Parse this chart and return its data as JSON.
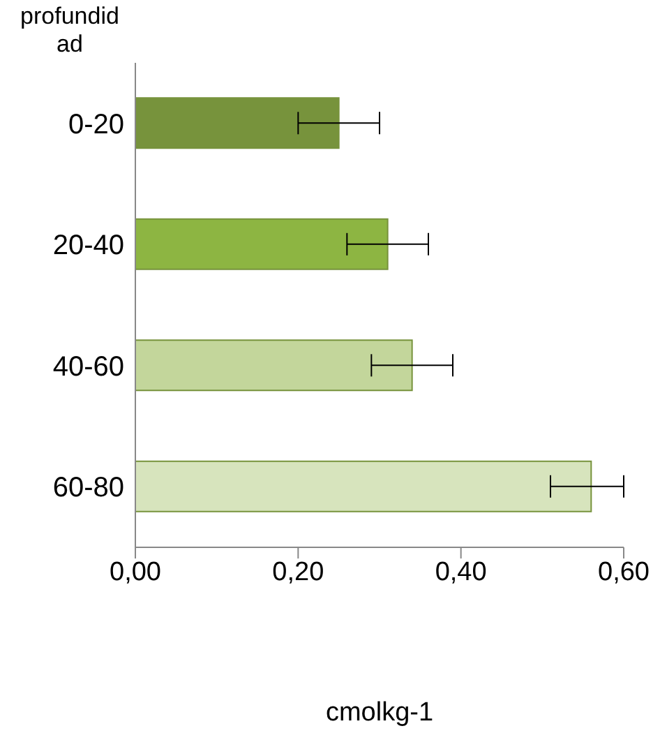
{
  "chart_data": {
    "type": "bar",
    "orientation": "horizontal",
    "ylabel": "profundidad",
    "xlabel": "cmolkg-1",
    "categories": [
      "0-20",
      "20-40",
      "40-60",
      "60-80"
    ],
    "values": [
      0.25,
      0.31,
      0.34,
      0.56
    ],
    "errors": [
      0.05,
      0.05,
      0.05,
      [
        0.51,
        0.6
      ]
    ],
    "colors": [
      "#77933c",
      "#8db542",
      "#c3d69b",
      "#d7e4bd"
    ],
    "xlim": [
      0,
      0.6
    ],
    "xticks": [
      {
        "value": 0,
        "label": "0,00"
      },
      {
        "value": 0.2,
        "label": "0,20"
      },
      {
        "value": 0.4,
        "label": "0,40"
      },
      {
        "value": 0.6,
        "label": "0,60"
      }
    ],
    "grid": false,
    "legend": false
  }
}
